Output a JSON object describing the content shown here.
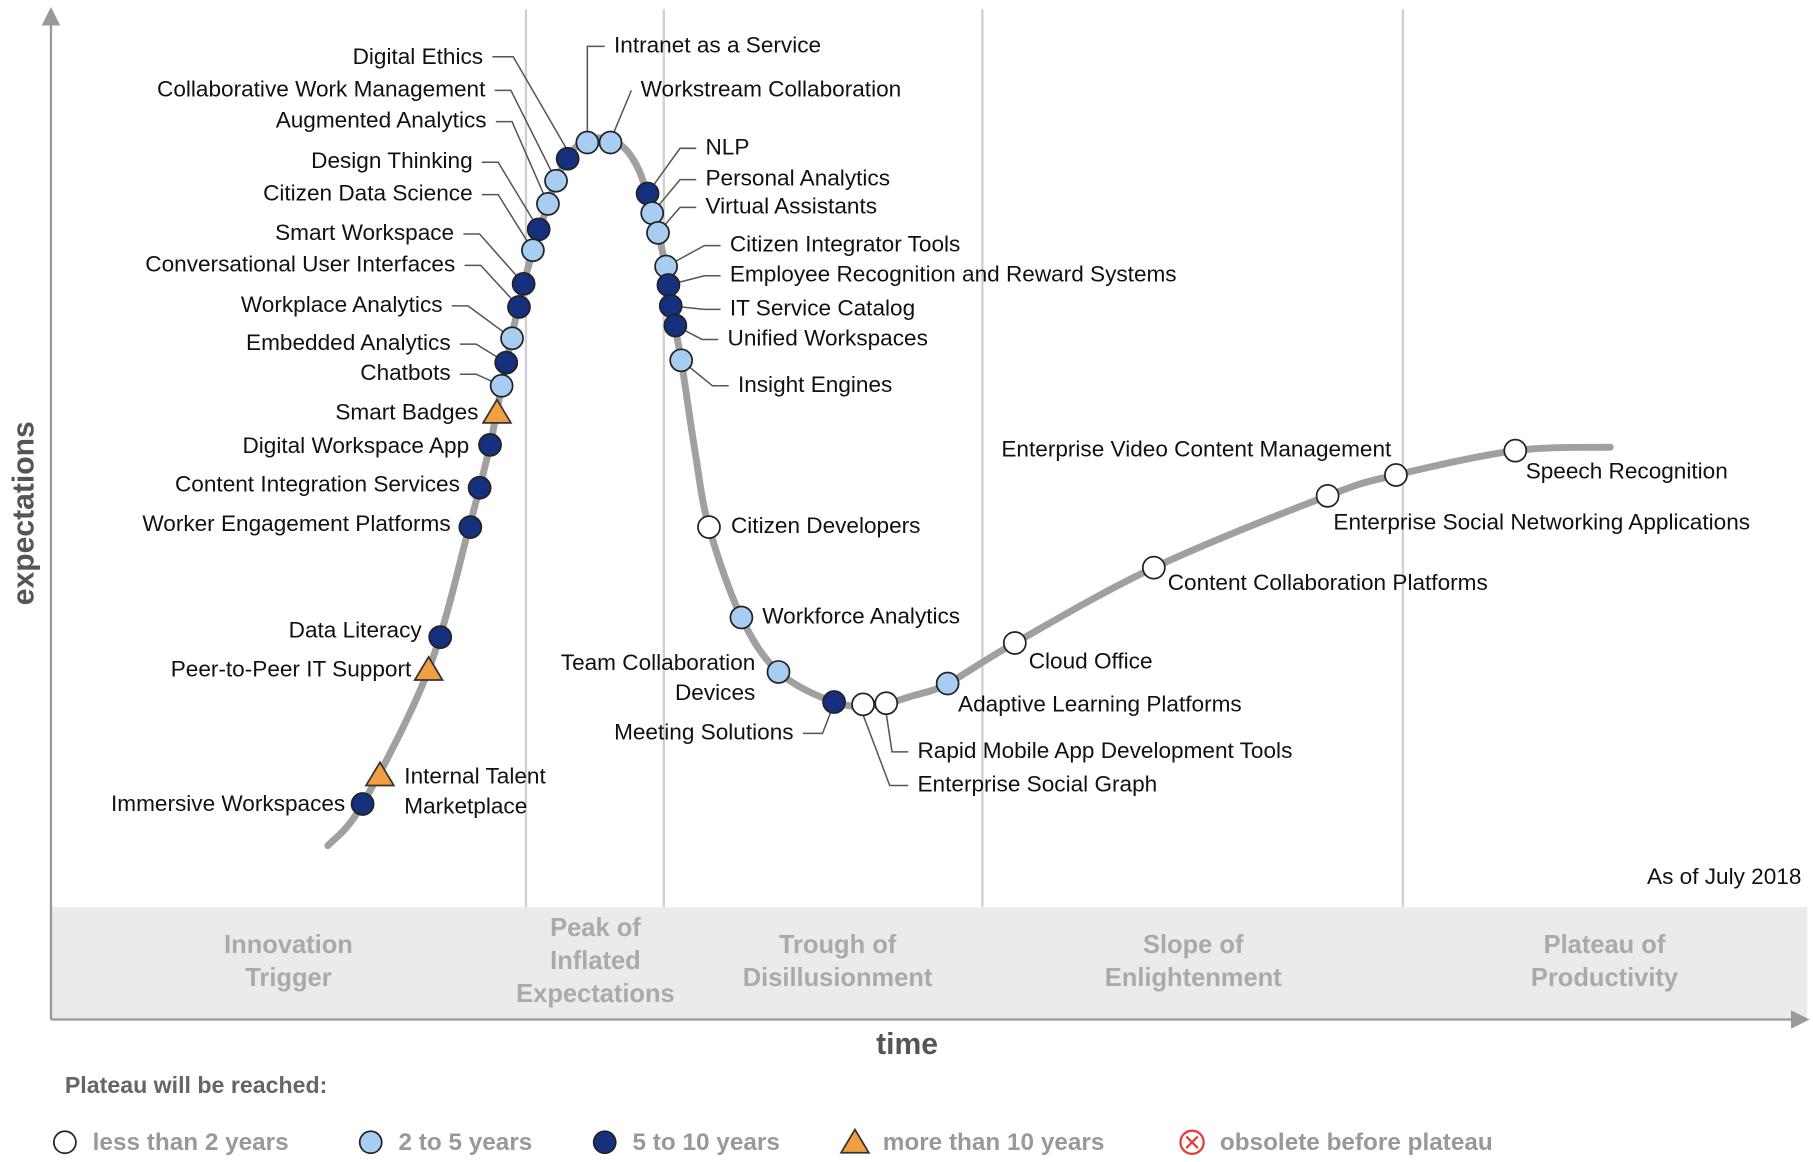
{
  "axes": {
    "y_label": "expectations",
    "x_label": "time"
  },
  "phases": [
    {
      "lines": [
        "Innovation",
        "Trigger"
      ]
    },
    {
      "lines": [
        "Peak of",
        "Inflated",
        "Expectations"
      ]
    },
    {
      "lines": [
        "Trough of",
        "Disillusionment"
      ]
    },
    {
      "lines": [
        "Slope of",
        "Enlightenment"
      ]
    },
    {
      "lines": [
        "Plateau of",
        "Productivity"
      ]
    }
  ],
  "note": "As of July 2018",
  "legend": {
    "title": "Plateau will be reached:",
    "items": [
      {
        "label": "less than 2 years",
        "symbol": "circle-white"
      },
      {
        "label": "2 to 5 years",
        "symbol": "circle-light"
      },
      {
        "label": "5 to 10 years",
        "symbol": "circle-dark"
      },
      {
        "label": "more than 10 years",
        "symbol": "triangle"
      },
      {
        "label": "obsolete before plateau",
        "symbol": "obsolete"
      }
    ]
  },
  "items": [
    {
      "label": "Digital Ethics",
      "plateau": "5 to 10 years"
    },
    {
      "label": "Collaborative Work Management",
      "plateau": "2 to 5 years"
    },
    {
      "label": "Augmented Analytics",
      "plateau": "2 to 5 years"
    },
    {
      "label": "Design Thinking",
      "plateau": "5 to 10 years"
    },
    {
      "label": "Citizen Data Science",
      "plateau": "2 to 5 years"
    },
    {
      "label": "Smart Workspace",
      "plateau": "5 to 10 years"
    },
    {
      "label": "Conversational User Interfaces",
      "plateau": "5 to 10 years"
    },
    {
      "label": "Workplace Analytics",
      "plateau": "2 to 5 years"
    },
    {
      "label": "Embedded Analytics",
      "plateau": "5 to 10 years"
    },
    {
      "label": "Chatbots",
      "plateau": "2 to 5 years"
    },
    {
      "label": "Smart Badges",
      "plateau": "more than 10 years"
    },
    {
      "label": "Digital Workspace App",
      "plateau": "5 to 10 years"
    },
    {
      "label": "Content Integration Services",
      "plateau": "5 to 10 years"
    },
    {
      "label": "Worker Engagement Platforms",
      "plateau": "5 to 10 years"
    },
    {
      "label": "Data Literacy",
      "plateau": "5 to 10 years"
    },
    {
      "label": "Peer-to-Peer IT Support",
      "plateau": "more than 10 years"
    },
    {
      "label": [
        "Internal Talent",
        "Marketplace"
      ],
      "plateau": "more than 10 years"
    },
    {
      "label": "Immersive Workspaces",
      "plateau": "5 to 10 years"
    },
    {
      "label": "Intranet as a Service",
      "plateau": "2 to 5 years"
    },
    {
      "label": "Workstream Collaboration",
      "plateau": "2 to 5 years"
    },
    {
      "label": "NLP",
      "plateau": "5 to 10 years"
    },
    {
      "label": "Personal Analytics",
      "plateau": "2 to 5 years"
    },
    {
      "label": "Virtual Assistants",
      "plateau": "2 to 5 years"
    },
    {
      "label": "Citizen Integrator Tools",
      "plateau": "2 to 5 years"
    },
    {
      "label": "Employee Recognition and Reward Systems",
      "plateau": "5 to 10 years"
    },
    {
      "label": "IT Service Catalog",
      "plateau": "5 to 10 years"
    },
    {
      "label": "Unified Workspaces",
      "plateau": "5 to 10 years"
    },
    {
      "label": "Insight Engines",
      "plateau": "2 to 5 years"
    },
    {
      "label": "Citizen Developers",
      "plateau": "less than 2 years"
    },
    {
      "label": "Workforce Analytics",
      "plateau": "2 to 5 years"
    },
    {
      "label": [
        "Team Collaboration",
        "Devices"
      ],
      "plateau": "2 to 5 years"
    },
    {
      "label": "Meeting Solutions",
      "plateau": "5 to 10 years"
    },
    {
      "label": "Rapid Mobile App Development Tools",
      "plateau": "less than 2 years"
    },
    {
      "label": "Enterprise Social Graph",
      "plateau": "less than 2 years"
    },
    {
      "label": "Adaptive Learning Platforms",
      "plateau": "2 to 5 years"
    },
    {
      "label": "Cloud Office",
      "plateau": "less than 2 years"
    },
    {
      "label": "Content Collaboration Platforms",
      "plateau": "less than 2 years"
    },
    {
      "label": "Enterprise Social Networking Applications",
      "plateau": "less than 2 years"
    },
    {
      "label": "Enterprise Video Content Management",
      "plateau": "less than 2 years"
    },
    {
      "label": "Speech Recognition",
      "plateau": "less than 2 years"
    }
  ]
}
